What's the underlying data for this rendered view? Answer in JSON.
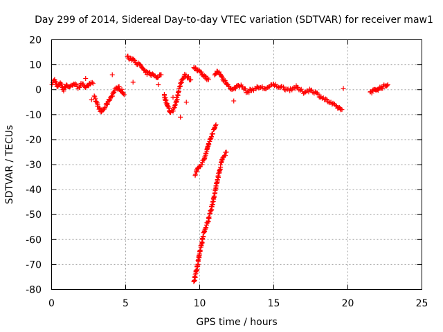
{
  "chart_data": {
    "type": "scatter",
    "title": "Day 299 of 2014, Sidereal Day-to-day VTEC variation (SDTVAR) for receiver maw1",
    "xlabel": "GPS time / hours",
    "ylabel": "SDTVAR / TECUs",
    "xlim": [
      0,
      25
    ],
    "ylim": [
      -80,
      20
    ],
    "xticks": [
      "0",
      "5",
      "10",
      "15",
      "20",
      "25"
    ],
    "yticks": [
      "-80",
      "-70",
      "-60",
      "-50",
      "-40",
      "-30",
      "-20",
      "-10",
      "0",
      "10",
      "20"
    ],
    "grid": true,
    "marker": "plus",
    "series_color": "#ff0000",
    "segments": [
      {
        "x": [
          0.0,
          0.2,
          0.4,
          0.6,
          0.8,
          1.0,
          1.2,
          1.5,
          1.8,
          2.0,
          2.3,
          2.5,
          2.8
        ],
        "y": [
          2.0,
          4.0,
          1.0,
          3.0,
          0.0,
          2.0,
          1.0,
          2.5,
          1.0,
          2.0,
          1.5,
          2.0,
          2.5
        ]
      },
      {
        "x": [
          2.9,
          3.1,
          3.3,
          3.5,
          3.7,
          3.9,
          4.1,
          4.3,
          4.5,
          4.7,
          4.9
        ],
        "y": [
          -3.0,
          -6.0,
          -9.0,
          -8.0,
          -6.0,
          -4.0,
          -2.0,
          0.0,
          1.0,
          0.0,
          -2.0
        ]
      },
      {
        "x": [
          5.1,
          5.3,
          5.5,
          5.7,
          5.9,
          6.1,
          6.3,
          6.5,
          6.8,
          7.1,
          7.4
        ],
        "y": [
          13.5,
          12.0,
          12.5,
          11.0,
          10.0,
          9.0,
          7.0,
          6.5,
          6.0,
          5.0,
          6.0
        ]
      },
      {
        "x": [
          7.6,
          7.8,
          8.0,
          8.2,
          8.4,
          8.6,
          8.8,
          9.0,
          9.2,
          9.4
        ],
        "y": [
          -2.0,
          -6.0,
          -9.0,
          -8.0,
          -5.0,
          0.0,
          4.0,
          6.0,
          5.0,
          4.0
        ]
      },
      {
        "x": [
          9.6,
          9.8,
          10.0,
          10.2,
          10.4,
          10.6
        ],
        "y": [
          9.0,
          8.0,
          7.0,
          6.0,
          5.0,
          4.0
        ]
      },
      {
        "x": [
          11.0,
          11.2,
          11.4,
          11.6,
          11.8,
          12.0,
          12.3,
          12.6,
          12.9,
          13.2,
          13.5,
          14.0,
          14.5,
          15.0,
          15.5,
          16.0,
          16.5,
          17.0,
          17.5,
          18.0,
          18.5,
          19.0,
          19.3,
          19.6
        ],
        "y": [
          5.5,
          7.5,
          6.0,
          4.0,
          3.0,
          1.0,
          0.0,
          2.0,
          1.0,
          -1.0,
          0.0,
          1.0,
          0.5,
          2.0,
          1.0,
          0.0,
          1.0,
          -1.0,
          0.0,
          -2.0,
          -4.0,
          -6.0,
          -7.0,
          -8.0
        ]
      },
      {
        "x": [
          21.5,
          21.7,
          21.9,
          22.1,
          22.3,
          22.5,
          22.7
        ],
        "y": [
          -1.0,
          -0.5,
          0.0,
          0.5,
          1.0,
          1.5,
          2.0
        ]
      },
      {
        "x": [
          9.7,
          9.9,
          10.1,
          10.3,
          10.5,
          10.7,
          10.9,
          11.1
        ],
        "y": [
          -34.0,
          -31.0,
          -30.0,
          -28.0,
          -24.0,
          -20.0,
          -17.0,
          -14.0
        ]
      },
      {
        "x": [
          9.6,
          9.8,
          10.0,
          10.3,
          10.6,
          10.9,
          11.2,
          11.5,
          11.8
        ],
        "y": [
          -77.0,
          -72.0,
          -65.0,
          -57.0,
          -52.0,
          -45.0,
          -36.0,
          -28.0,
          -25.0
        ]
      }
    ],
    "scattered_points": {
      "x": [
        2.3,
        2.7,
        4.1,
        5.5,
        6.6,
        7.2,
        8.2,
        8.7,
        9.1,
        12.3,
        19.7
      ],
      "y": [
        4.5,
        -4.0,
        6.0,
        3.0,
        7.0,
        2.0,
        -3.0,
        -11.0,
        -5.0,
        -4.5,
        0.5
      ]
    }
  }
}
